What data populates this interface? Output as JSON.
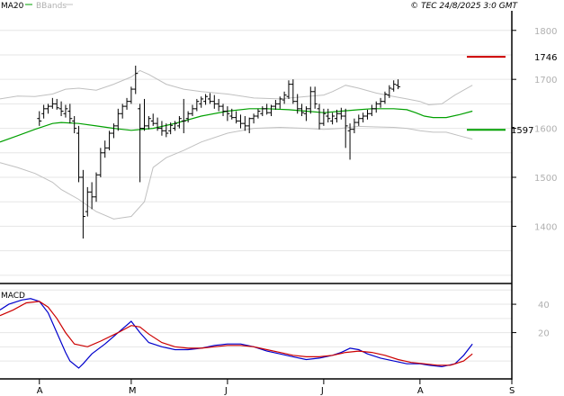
{
  "header": {
    "ma_label": "MA20",
    "bb_label": "BBands",
    "source": "© TEC 24/8/2025 3:0 GMT"
  },
  "macd_panel": {
    "label": "MACD"
  },
  "colors": {
    "price": "#000000",
    "ma20": "#00a000",
    "bbands": "#c0c0c0",
    "resistance": "#cc0000",
    "support": "#00a000",
    "macd": "#0000cc",
    "signal": "#cc0000",
    "grid": "#e6e6e6"
  },
  "chart_data": [
    {
      "type": "line",
      "subtype": "ohlc-bars",
      "title": "",
      "ylim": [
        1285,
        1840
      ],
      "y_ticks": [
        1400,
        1500,
        1600,
        1700,
        1800
      ],
      "x_tick_labels": [
        "A",
        "M",
        "J",
        "J",
        "A",
        "S"
      ],
      "x_tick_positions": [
        0,
        21,
        43,
        65,
        87,
        108
      ],
      "x_range": [
        -9,
        108
      ],
      "levels": [
        {
          "value": 1746,
          "label": "1746",
          "color": "#cc0000"
        },
        {
          "value": 1597,
          "label": "1597",
          "color": "#00a000"
        }
      ],
      "bars": [
        [
          1620,
          1635,
          1605,
          1615
        ],
        [
          1630,
          1648,
          1620,
          1640
        ],
        [
          1640,
          1650,
          1630,
          1645
        ],
        [
          1645,
          1662,
          1640,
          1650
        ],
        [
          1650,
          1660,
          1638,
          1642
        ],
        [
          1640,
          1655,
          1625,
          1635
        ],
        [
          1630,
          1648,
          1622,
          1640
        ],
        [
          1635,
          1650,
          1610,
          1620
        ],
        [
          1615,
          1625,
          1590,
          1600
        ],
        [
          1590,
          1605,
          1490,
          1500
        ],
        [
          1500,
          1515,
          1375,
          1420
        ],
        [
          1430,
          1480,
          1420,
          1470
        ],
        [
          1470,
          1490,
          1435,
          1460
        ],
        [
          1460,
          1510,
          1450,
          1505
        ],
        [
          1505,
          1560,
          1500,
          1550
        ],
        [
          1550,
          1575,
          1540,
          1560
        ],
        [
          1560,
          1595,
          1555,
          1590
        ],
        [
          1590,
          1610,
          1580,
          1605
        ],
        [
          1605,
          1640,
          1595,
          1630
        ],
        [
          1630,
          1650,
          1620,
          1645
        ],
        [
          1645,
          1662,
          1638,
          1655
        ],
        [
          1655,
          1685,
          1650,
          1680
        ],
        [
          1680,
          1728,
          1670,
          1712
        ],
        [
          1640,
          1650,
          1490,
          1600
        ],
        [
          1600,
          1660,
          1595,
          1605
        ],
        [
          1605,
          1625,
          1598,
          1620
        ],
        [
          1615,
          1630,
          1605,
          1610
        ],
        [
          1610,
          1622,
          1595,
          1600
        ],
        [
          1600,
          1615,
          1585,
          1595
        ],
        [
          1595,
          1610,
          1582,
          1590
        ],
        [
          1595,
          1612,
          1588,
          1606
        ],
        [
          1600,
          1615,
          1595,
          1610
        ],
        [
          1605,
          1625,
          1600,
          1620
        ],
        [
          1615,
          1660,
          1590,
          1615
        ],
        [
          1620,
          1635,
          1612,
          1630
        ],
        [
          1630,
          1648,
          1625,
          1640
        ],
        [
          1640,
          1660,
          1635,
          1655
        ],
        [
          1650,
          1665,
          1642,
          1660
        ],
        [
          1655,
          1670,
          1648,
          1665
        ],
        [
          1660,
          1672,
          1650,
          1655
        ],
        [
          1655,
          1668,
          1640,
          1650
        ],
        [
          1650,
          1660,
          1635,
          1645
        ],
        [
          1645,
          1650,
          1625,
          1635
        ],
        [
          1635,
          1645,
          1615,
          1630
        ],
        [
          1625,
          1640,
          1618,
          1622
        ],
        [
          1622,
          1635,
          1610,
          1615
        ],
        [
          1615,
          1628,
          1600,
          1610
        ],
        [
          1610,
          1625,
          1595,
          1605
        ],
        [
          1605,
          1622,
          1590,
          1620
        ],
        [
          1620,
          1630,
          1610,
          1625
        ],
        [
          1625,
          1640,
          1620,
          1635
        ],
        [
          1630,
          1645,
          1625,
          1640
        ],
        [
          1640,
          1650,
          1628,
          1632
        ],
        [
          1632,
          1648,
          1625,
          1645
        ],
        [
          1645,
          1658,
          1638,
          1650
        ],
        [
          1650,
          1665,
          1640,
          1660
        ],
        [
          1658,
          1675,
          1650,
          1668
        ],
        [
          1665,
          1698,
          1660,
          1690
        ],
        [
          1690,
          1700,
          1650,
          1655
        ],
        [
          1655,
          1670,
          1630,
          1640
        ],
        [
          1640,
          1650,
          1625,
          1632
        ],
        [
          1630,
          1645,
          1615,
          1640
        ],
        [
          1640,
          1685,
          1630,
          1675
        ],
        [
          1675,
          1685,
          1640,
          1650
        ],
        [
          1640,
          1650,
          1598,
          1610
        ],
        [
          1610,
          1640,
          1605,
          1630
        ],
        [
          1625,
          1640,
          1612,
          1620
        ],
        [
          1615,
          1632,
          1608,
          1625
        ],
        [
          1620,
          1638,
          1612,
          1630
        ],
        [
          1630,
          1642,
          1618,
          1625
        ],
        [
          1625,
          1640,
          1560,
          1605
        ],
        [
          1595,
          1610,
          1536,
          1598
        ],
        [
          1598,
          1620,
          1590,
          1612
        ],
        [
          1612,
          1628,
          1605,
          1620
        ],
        [
          1620,
          1632,
          1612,
          1625
        ],
        [
          1625,
          1638,
          1618,
          1630
        ],
        [
          1630,
          1648,
          1625,
          1640
        ],
        [
          1640,
          1655,
          1632,
          1650
        ],
        [
          1650,
          1662,
          1642,
          1655
        ],
        [
          1655,
          1675,
          1650,
          1670
        ],
        [
          1668,
          1688,
          1662,
          1682
        ],
        [
          1680,
          1698,
          1675,
          1690
        ],
        [
          1688,
          1700,
          1680,
          1685
        ]
      ],
      "ma20": [
        [
          -9,
          1572
        ],
        [
          -5,
          1585
        ],
        [
          -1,
          1598
        ],
        [
          3,
          1610
        ],
        [
          5,
          1612
        ],
        [
          9,
          1610
        ],
        [
          13,
          1605
        ],
        [
          17,
          1600
        ],
        [
          21,
          1596
        ],
        [
          26,
          1600
        ],
        [
          31,
          1610
        ],
        [
          37,
          1625
        ],
        [
          43,
          1635
        ],
        [
          48,
          1640
        ],
        [
          52,
          1640
        ],
        [
          57,
          1638
        ],
        [
          61,
          1635
        ],
        [
          65,
          1632
        ],
        [
          69,
          1635
        ],
        [
          73,
          1638
        ],
        [
          76,
          1640
        ],
        [
          81,
          1640
        ],
        [
          84,
          1638
        ],
        [
          86,
          1632
        ],
        [
          88,
          1625
        ],
        [
          90,
          1622
        ],
        [
          93,
          1622
        ],
        [
          96,
          1628
        ],
        [
          99,
          1635
        ]
      ],
      "bb_upper": [
        [
          -9,
          1660
        ],
        [
          -5,
          1666
        ],
        [
          -1,
          1665
        ],
        [
          3,
          1670
        ],
        [
          6,
          1680
        ],
        [
          9,
          1682
        ],
        [
          13,
          1678
        ],
        [
          17,
          1690
        ],
        [
          21,
          1705
        ],
        [
          23,
          1718
        ],
        [
          25,
          1710
        ],
        [
          29,
          1690
        ],
        [
          33,
          1680
        ],
        [
          37,
          1675
        ],
        [
          43,
          1670
        ],
        [
          49,
          1662
        ],
        [
          55,
          1660
        ],
        [
          61,
          1665
        ],
        [
          65,
          1668
        ],
        [
          67,
          1675
        ],
        [
          70,
          1688
        ],
        [
          73,
          1682
        ],
        [
          77,
          1672
        ],
        [
          81,
          1665
        ],
        [
          84,
          1660
        ],
        [
          87,
          1655
        ],
        [
          89,
          1648
        ],
        [
          92,
          1650
        ],
        [
          95,
          1668
        ],
        [
          99,
          1688
        ]
      ],
      "bb_lower": [
        [
          -9,
          1530
        ],
        [
          -5,
          1520
        ],
        [
          -1,
          1508
        ],
        [
          3,
          1490
        ],
        [
          5,
          1475
        ],
        [
          9,
          1455
        ],
        [
          13,
          1430
        ],
        [
          17,
          1415
        ],
        [
          21,
          1420
        ],
        [
          24,
          1450
        ],
        [
          26,
          1520
        ],
        [
          29,
          1540
        ],
        [
          33,
          1555
        ],
        [
          37,
          1572
        ],
        [
          43,
          1590
        ],
        [
          49,
          1600
        ],
        [
          55,
          1602
        ],
        [
          61,
          1600
        ],
        [
          65,
          1598
        ],
        [
          69,
          1600
        ],
        [
          73,
          1604
        ],
        [
          77,
          1603
        ],
        [
          81,
          1602
        ],
        [
          84,
          1600
        ],
        [
          87,
          1595
        ],
        [
          90,
          1592
        ],
        [
          93,
          1592
        ],
        [
          96,
          1585
        ],
        [
          99,
          1578
        ]
      ]
    },
    {
      "type": "line",
      "title": "MACD",
      "ylim": [
        -12,
        54
      ],
      "y_ticks": [
        20,
        40
      ],
      "series": [
        {
          "role": "macd",
          "color": "#0000cc",
          "points": [
            [
              -9,
              36
            ],
            [
              -7,
              40
            ],
            [
              -4,
              43
            ],
            [
              -2,
              44
            ],
            [
              0,
              42
            ],
            [
              2,
              34
            ],
            [
              4,
              20
            ],
            [
              6,
              6
            ],
            [
              7,
              0
            ],
            [
              9,
              -5
            ],
            [
              10,
              -2
            ],
            [
              12,
              5
            ],
            [
              15,
              12
            ],
            [
              18,
              20
            ],
            [
              21,
              28
            ],
            [
              23,
              20
            ],
            [
              25,
              13
            ],
            [
              28,
              10
            ],
            [
              31,
              8
            ],
            [
              34,
              8
            ],
            [
              37,
              9
            ],
            [
              40,
              11
            ],
            [
              43,
              12
            ],
            [
              46,
              12
            ],
            [
              49,
              10
            ],
            [
              52,
              7
            ],
            [
              55,
              5
            ],
            [
              58,
              3
            ],
            [
              61,
              1
            ],
            [
              64,
              2
            ],
            [
              67,
              4
            ],
            [
              69,
              6
            ],
            [
              71,
              9
            ],
            [
              73,
              8
            ],
            [
              75,
              5
            ],
            [
              78,
              2
            ],
            [
              81,
              0
            ],
            [
              84,
              -2
            ],
            [
              87,
              -2
            ],
            [
              89,
              -3
            ],
            [
              92,
              -4
            ],
            [
              95,
              -2
            ],
            [
              97,
              4
            ],
            [
              99,
              12
            ]
          ]
        },
        {
          "role": "signal",
          "color": "#cc0000",
          "points": [
            [
              -9,
              32
            ],
            [
              -6,
              36
            ],
            [
              -3,
              41
            ],
            [
              0,
              42
            ],
            [
              2,
              38
            ],
            [
              4,
              30
            ],
            [
              6,
              20
            ],
            [
              8,
              12
            ],
            [
              11,
              10
            ],
            [
              14,
              14
            ],
            [
              18,
              20
            ],
            [
              21,
              25
            ],
            [
              23,
              24
            ],
            [
              25,
              19
            ],
            [
              28,
              13
            ],
            [
              31,
              10
            ],
            [
              34,
              9
            ],
            [
              37,
              9
            ],
            [
              40,
              10
            ],
            [
              43,
              11
            ],
            [
              46,
              11
            ],
            [
              49,
              10
            ],
            [
              52,
              8
            ],
            [
              55,
              6
            ],
            [
              58,
              4
            ],
            [
              61,
              3
            ],
            [
              64,
              3
            ],
            [
              67,
              4
            ],
            [
              70,
              6
            ],
            [
              73,
              7
            ],
            [
              76,
              6
            ],
            [
              79,
              4
            ],
            [
              82,
              1
            ],
            [
              85,
              -1
            ],
            [
              88,
              -2
            ],
            [
              91,
              -3
            ],
            [
              94,
              -3
            ],
            [
              97,
              0
            ],
            [
              99,
              5
            ]
          ]
        }
      ]
    }
  ]
}
